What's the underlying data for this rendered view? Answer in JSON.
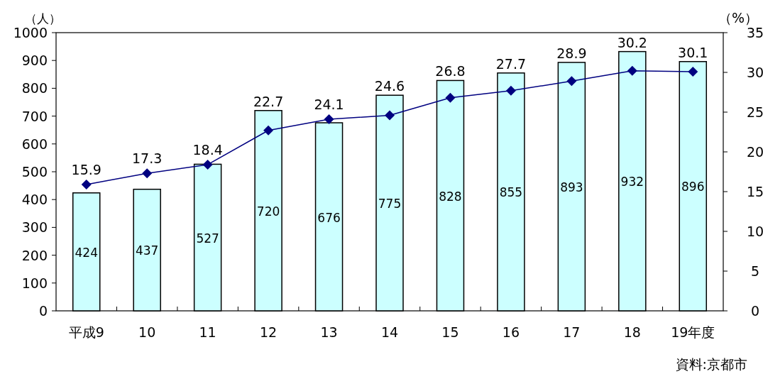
{
  "chart_data": {
    "type": "bar",
    "categories": [
      "平成9",
      "10",
      "11",
      "12",
      "13",
      "14",
      "15",
      "16",
      "17",
      "18",
      "19年度"
    ],
    "series": [
      {
        "color": "#ccffff",
        "values": [
          424,
          437,
          527,
          720,
          676,
          775,
          828,
          855,
          893,
          932,
          896
        ]
      },
      {
        "type": "line",
        "axis": "y2",
        "color": "#000080",
        "values": [
          15.9,
          17.3,
          18.4,
          22.7,
          24.1,
          24.6,
          26.8,
          27.7,
          28.9,
          30.2,
          30.1
        ]
      }
    ],
    "ylim": [
      0,
      1000
    ],
    "yticks": [
      0,
      100,
      200,
      300,
      400,
      500,
      600,
      700,
      800,
      900,
      1000
    ],
    "y2lim": [
      0,
      35
    ],
    "y2ticks": [
      0,
      5,
      10,
      15,
      20,
      25,
      30,
      35
    ],
    "ylabel": "（人）",
    "y2label": "（%）",
    "data_labels": true,
    "marker": "diamond",
    "annotations": [
      "資料:京都市"
    ]
  }
}
